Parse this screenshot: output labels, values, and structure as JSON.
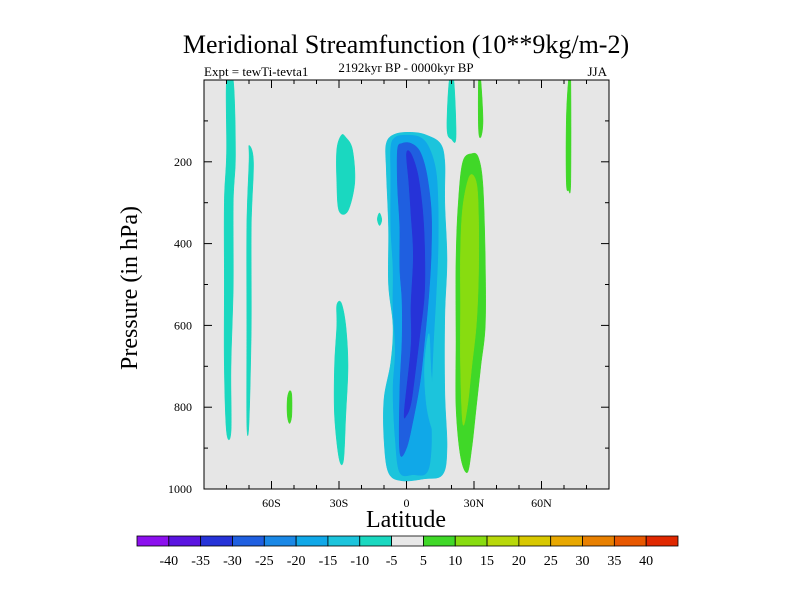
{
  "chart_data": {
    "type": "filled-contour",
    "title": "Meridional Streamfunction (10**9kg/m-2)",
    "left_label": "Expt = tewTi-tevta1",
    "center_label": "2192kyr BP - 0000kyr BP",
    "right_label": "JJA",
    "xlabel": "Latitude",
    "ylabel": "Pressure (in hPa)",
    "xlim": [
      -90,
      90
    ],
    "ylim": [
      1000,
      0
    ],
    "x_ticks": [
      {
        "value": -60,
        "label": "60S"
      },
      {
        "value": -30,
        "label": "30S"
      },
      {
        "value": 0,
        "label": "0"
      },
      {
        "value": 30,
        "label": "30N"
      },
      {
        "value": 60,
        "label": "60N"
      }
    ],
    "y_ticks": [
      {
        "value": 200,
        "label": "200"
      },
      {
        "value": 400,
        "label": "400"
      },
      {
        "value": 600,
        "label": "600"
      },
      {
        "value": 800,
        "label": "800"
      },
      {
        "value": 1000,
        "label": "1000"
      }
    ],
    "colorbar": {
      "labels": [
        "-40",
        "-35",
        "-30",
        "-25",
        "-20",
        "-15",
        "-10",
        "-5",
        "5",
        "10",
        "15",
        "20",
        "25",
        "30",
        "35",
        "40"
      ],
      "colors": [
        "#8c10ee",
        "#5a14e0",
        "#2633d8",
        "#1f5fe0",
        "#1a88e6",
        "#10a8e8",
        "#1cc4dc",
        "#1ad8c0",
        "#e8e8e8",
        "#40d828",
        "#88dc10",
        "#b8d80a",
        "#d8c800",
        "#e8a800",
        "#e88000",
        "#e85800",
        "#e02800"
      ]
    },
    "features": [
      {
        "name": "min-25-core",
        "level": -25,
        "color": "#2633d8",
        "points": [
          [
            -1,
            810
          ],
          [
            2,
            650
          ],
          [
            2,
            550
          ],
          [
            3,
            430
          ],
          [
            2,
            330
          ],
          [
            1,
            250
          ],
          [
            0,
            180
          ],
          [
            2,
            180
          ],
          [
            5,
            230
          ],
          [
            7,
            310
          ],
          [
            8,
            400
          ],
          [
            8,
            520
          ],
          [
            6,
            620
          ],
          [
            4,
            710
          ],
          [
            2,
            790
          ],
          [
            0,
            820
          ]
        ]
      },
      {
        "name": "min-20",
        "level": -20,
        "color": "#1f5fe0",
        "points": [
          [
            -3,
            910
          ],
          [
            -3,
            760
          ],
          [
            -2,
            640
          ],
          [
            -2,
            540
          ],
          [
            -3,
            460
          ],
          [
            -3,
            360
          ],
          [
            -4,
            260
          ],
          [
            -4,
            170
          ],
          [
            -2,
            155
          ],
          [
            2,
            155
          ],
          [
            6,
            175
          ],
          [
            9,
            230
          ],
          [
            11,
            320
          ],
          [
            11,
            420
          ],
          [
            10,
            520
          ],
          [
            8,
            640
          ],
          [
            6,
            740
          ],
          [
            3,
            830
          ],
          [
            0,
            900
          ]
        ]
      },
      {
        "name": "min-15",
        "level": -15,
        "color": "#10a8e8",
        "points": [
          [
            -3,
            960
          ],
          [
            -5,
            880
          ],
          [
            -6,
            760
          ],
          [
            -5,
            660
          ],
          [
            -6,
            560
          ],
          [
            -6,
            460
          ],
          [
            -7,
            360
          ],
          [
            -7,
            240
          ],
          [
            -7,
            165
          ],
          [
            -5,
            140
          ],
          [
            0,
            135
          ],
          [
            6,
            140
          ],
          [
            10,
            165
          ],
          [
            13,
            220
          ],
          [
            14,
            300
          ],
          [
            14,
            420
          ],
          [
            13,
            540
          ],
          [
            12,
            640
          ],
          [
            11,
            780
          ],
          [
            11,
            900
          ],
          [
            9,
            960
          ],
          [
            3,
            965
          ]
        ]
      },
      {
        "name": "min-10",
        "level": -10,
        "color": "#1cc4dc",
        "points": [
          [
            -7,
            690
          ],
          [
            -6,
            600
          ],
          [
            -8,
            500
          ],
          [
            -8,
            360
          ],
          [
            -9,
            220
          ],
          [
            -9,
            155
          ],
          [
            -5,
            132
          ],
          [
            3,
            128
          ],
          [
            9,
            135
          ],
          [
            15,
            155
          ],
          [
            17,
            200
          ],
          [
            17,
            300
          ],
          [
            18,
            440
          ],
          [
            17,
            580
          ],
          [
            17,
            760
          ],
          [
            18,
            900
          ],
          [
            16,
            965
          ],
          [
            8,
            975
          ],
          [
            -2,
            980
          ],
          [
            -8,
            960
          ],
          [
            -10,
            880
          ],
          [
            -10,
            780
          ]
        ]
      },
      {
        "name": "min-8",
        "level": -10,
        "color": "#1cc4dc",
        "points": [
          [
            10,
            620
          ],
          [
            11,
            720
          ],
          [
            13,
            820
          ],
          [
            12,
            860
          ],
          [
            9,
            800
          ],
          [
            8,
            700
          ]
        ]
      },
      {
        "name": "pos-10",
        "level": 10,
        "color": "#40d828",
        "points": [
          [
            24,
            920
          ],
          [
            22,
            800
          ],
          [
            22,
            640
          ],
          [
            22,
            440
          ],
          [
            23,
            300
          ],
          [
            25,
            200
          ],
          [
            29,
            180
          ],
          [
            32,
            190
          ],
          [
            34,
            260
          ],
          [
            35,
            440
          ],
          [
            35,
            600
          ],
          [
            33,
            700
          ],
          [
            31,
            800
          ],
          [
            29,
            900
          ],
          [
            27,
            960
          ]
        ]
      },
      {
        "name": "pos-15-core",
        "level": 15,
        "color": "#88dc10",
        "points": [
          [
            25,
            840
          ],
          [
            24,
            700
          ],
          [
            24,
            550
          ],
          [
            24,
            420
          ],
          [
            25,
            310
          ],
          [
            28,
            235
          ],
          [
            31,
            250
          ],
          [
            32,
            330
          ],
          [
            32,
            480
          ],
          [
            31,
            600
          ],
          [
            29,
            700
          ],
          [
            27,
            800
          ]
        ]
      },
      {
        "name": "neg-left-strip",
        "level": -5,
        "color": "#1ad8c0",
        "points": [
          [
            -80,
            860
          ],
          [
            -81,
            700
          ],
          [
            -81,
            500
          ],
          [
            -81,
            300
          ],
          [
            -80,
            180
          ],
          [
            -80,
            0
          ],
          [
            -77,
            0
          ],
          [
            -76,
            180
          ],
          [
            -77,
            300
          ],
          [
            -77,
            500
          ],
          [
            -78,
            700
          ],
          [
            -78,
            860
          ]
        ]
      },
      {
        "name": "neg-mid-strip",
        "level": -5,
        "color": "#1ad8c0",
        "points": [
          [
            -71,
            840
          ],
          [
            -71,
            600
          ],
          [
            -71,
            360
          ],
          [
            -70,
            200
          ],
          [
            -70,
            160
          ],
          [
            -68,
            200
          ],
          [
            -69,
            360
          ],
          [
            -69,
            600
          ],
          [
            -70,
            840
          ]
        ]
      },
      {
        "name": "neg-50-blob-lower",
        "level": -5,
        "color": "#1ad8c0",
        "points": [
          [
            -30,
            925
          ],
          [
            -32,
            820
          ],
          [
            -32,
            700
          ],
          [
            -31,
            600
          ],
          [
            -31,
            550
          ],
          [
            -29,
            545
          ],
          [
            -27,
            600
          ],
          [
            -26,
            700
          ],
          [
            -27,
            820
          ],
          [
            -28,
            930
          ]
        ]
      },
      {
        "name": "neg-50-blob-upper",
        "level": -5,
        "color": "#1ad8c0",
        "points": [
          [
            -30,
            320
          ],
          [
            -31,
            250
          ],
          [
            -31,
            170
          ],
          [
            -29,
            135
          ],
          [
            -27,
            140
          ],
          [
            -24,
            170
          ],
          [
            -23,
            250
          ],
          [
            -26,
            320
          ]
        ]
      },
      {
        "name": "neg-small",
        "level": -5,
        "color": "#1ad8c0",
        "points": [
          [
            -13,
            340
          ],
          [
            -12,
            325
          ],
          [
            -11,
            342
          ],
          [
            -12,
            356
          ]
        ]
      },
      {
        "name": "neg-top-right",
        "level": -5,
        "color": "#1ad8c0",
        "points": [
          [
            19,
            0
          ],
          [
            21,
            0
          ],
          [
            22,
            140
          ],
          [
            20,
            145
          ],
          [
            18,
            120
          ]
        ]
      },
      {
        "name": "pos-small-left",
        "level": 5,
        "color": "#40d828",
        "points": [
          [
            -52,
            760
          ],
          [
            -51,
            770
          ],
          [
            -51,
            820
          ],
          [
            -52,
            840
          ],
          [
            -53,
            820
          ],
          [
            -53,
            780
          ]
        ]
      },
      {
        "name": "pos-right-strip",
        "level": 5,
        "color": "#40d828",
        "points": [
          [
            72,
            0
          ],
          [
            73,
            0
          ],
          [
            73,
            250
          ],
          [
            72,
            270
          ],
          [
            71,
            250
          ],
          [
            71,
            100
          ]
        ]
      },
      {
        "name": "pos-right-strip-upper",
        "level": 5,
        "color": "#40d828",
        "points": [
          [
            32,
            0
          ],
          [
            33,
            0
          ],
          [
            34,
            100
          ],
          [
            33,
            140
          ],
          [
            32,
            120
          ]
        ]
      }
    ]
  }
}
